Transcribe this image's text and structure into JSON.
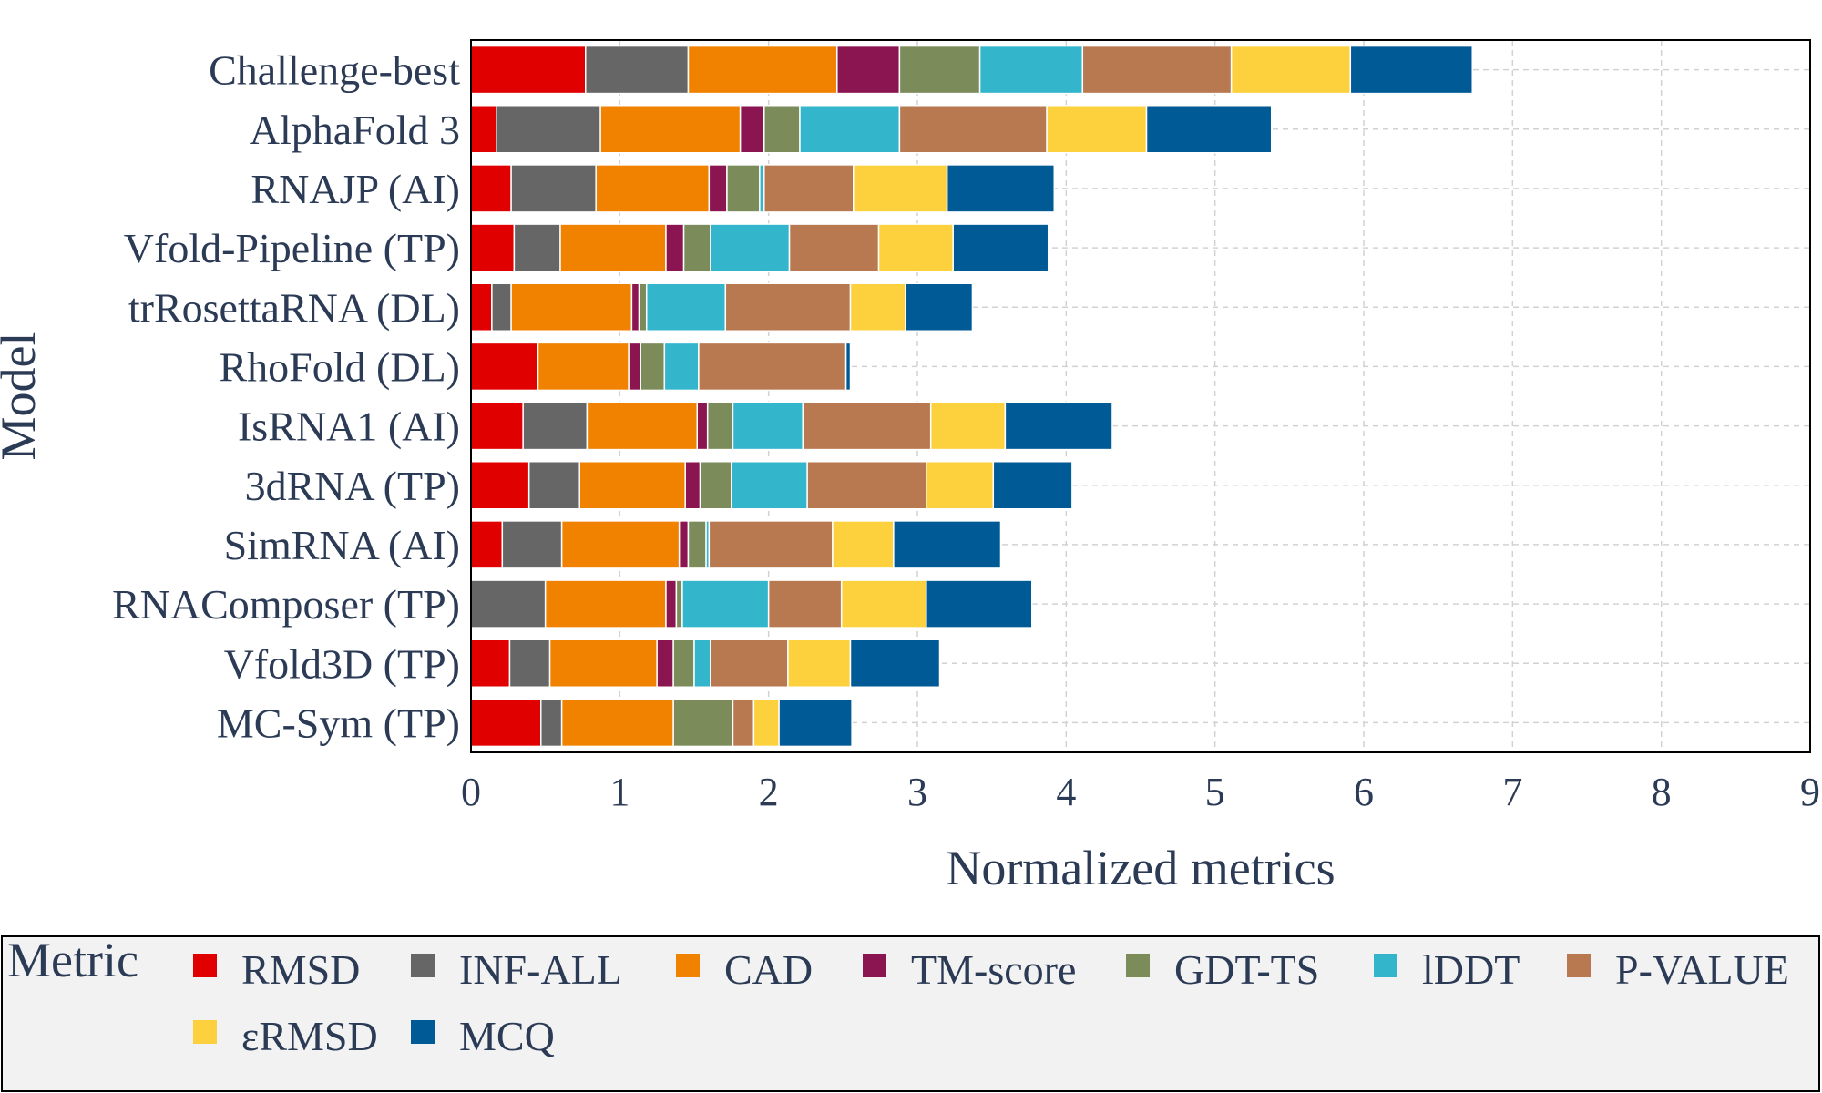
{
  "chart_data": {
    "type": "bar",
    "orientation": "horizontal",
    "stacked": true,
    "xlabel": "Normalized metrics",
    "ylabel": "Model",
    "xlim": [
      0,
      9
    ],
    "xticks": [
      "0",
      "1",
      "2",
      "3",
      "4",
      "5",
      "6",
      "7",
      "8",
      "9"
    ],
    "grid": true,
    "legend_title": "Metric",
    "legend_position": "bottom",
    "categories": [
      "Challenge-best",
      "AlphaFold 3",
      "RNAJP (AI)",
      "Vfold-Pipeline (TP)",
      "trRosettaRNA (DL)",
      "RhoFold (DL)",
      "IsRNA1 (AI)",
      "3dRNA (TP)",
      "SimRNA (AI)",
      "RNAComposer (TP)",
      "Vfold3D (TP)",
      "MC-Sym (TP)"
    ],
    "series": [
      {
        "name": "RMSD",
        "color": "#e00000",
        "values": [
          0.77,
          0.17,
          0.27,
          0.29,
          0.14,
          0.45,
          0.35,
          0.39,
          0.21,
          0.0,
          0.26,
          0.47
        ]
      },
      {
        "name": "INF-ALL",
        "color": "#666666",
        "values": [
          0.69,
          0.7,
          0.57,
          0.31,
          0.13,
          0.0,
          0.43,
          0.34,
          0.4,
          0.5,
          0.27,
          0.14
        ]
      },
      {
        "name": "CAD",
        "color": "#f08200",
        "values": [
          1.0,
          0.94,
          0.76,
          0.71,
          0.81,
          0.61,
          0.74,
          0.71,
          0.79,
          0.81,
          0.72,
          0.75
        ]
      },
      {
        "name": "TM-score",
        "color": "#8b1550",
        "values": [
          0.42,
          0.16,
          0.12,
          0.12,
          0.05,
          0.08,
          0.07,
          0.1,
          0.06,
          0.07,
          0.11,
          0.0
        ]
      },
      {
        "name": "GDT-TS",
        "color": "#7b8b5a",
        "values": [
          0.54,
          0.24,
          0.22,
          0.18,
          0.05,
          0.16,
          0.17,
          0.21,
          0.12,
          0.04,
          0.14,
          0.4
        ]
      },
      {
        "name": "lDDT",
        "color": "#33b5cc",
        "values": [
          0.69,
          0.67,
          0.03,
          0.53,
          0.53,
          0.23,
          0.47,
          0.51,
          0.02,
          0.58,
          0.11,
          0.0
        ]
      },
      {
        "name": "P-VALUE",
        "color": "#b87850",
        "values": [
          1.0,
          0.99,
          0.6,
          0.6,
          0.84,
          0.99,
          0.86,
          0.8,
          0.83,
          0.49,
          0.52,
          0.14
        ]
      },
      {
        "name": "εRMSD",
        "color": "#fdd13d",
        "values": [
          0.8,
          0.67,
          0.63,
          0.5,
          0.37,
          0.0,
          0.5,
          0.45,
          0.41,
          0.57,
          0.42,
          0.17
        ]
      },
      {
        "name": "MCQ",
        "color": "#005a96",
        "values": [
          0.82,
          0.84,
          0.72,
          0.64,
          0.45,
          0.03,
          0.72,
          0.53,
          0.72,
          0.71,
          0.6,
          0.49
        ]
      }
    ]
  }
}
